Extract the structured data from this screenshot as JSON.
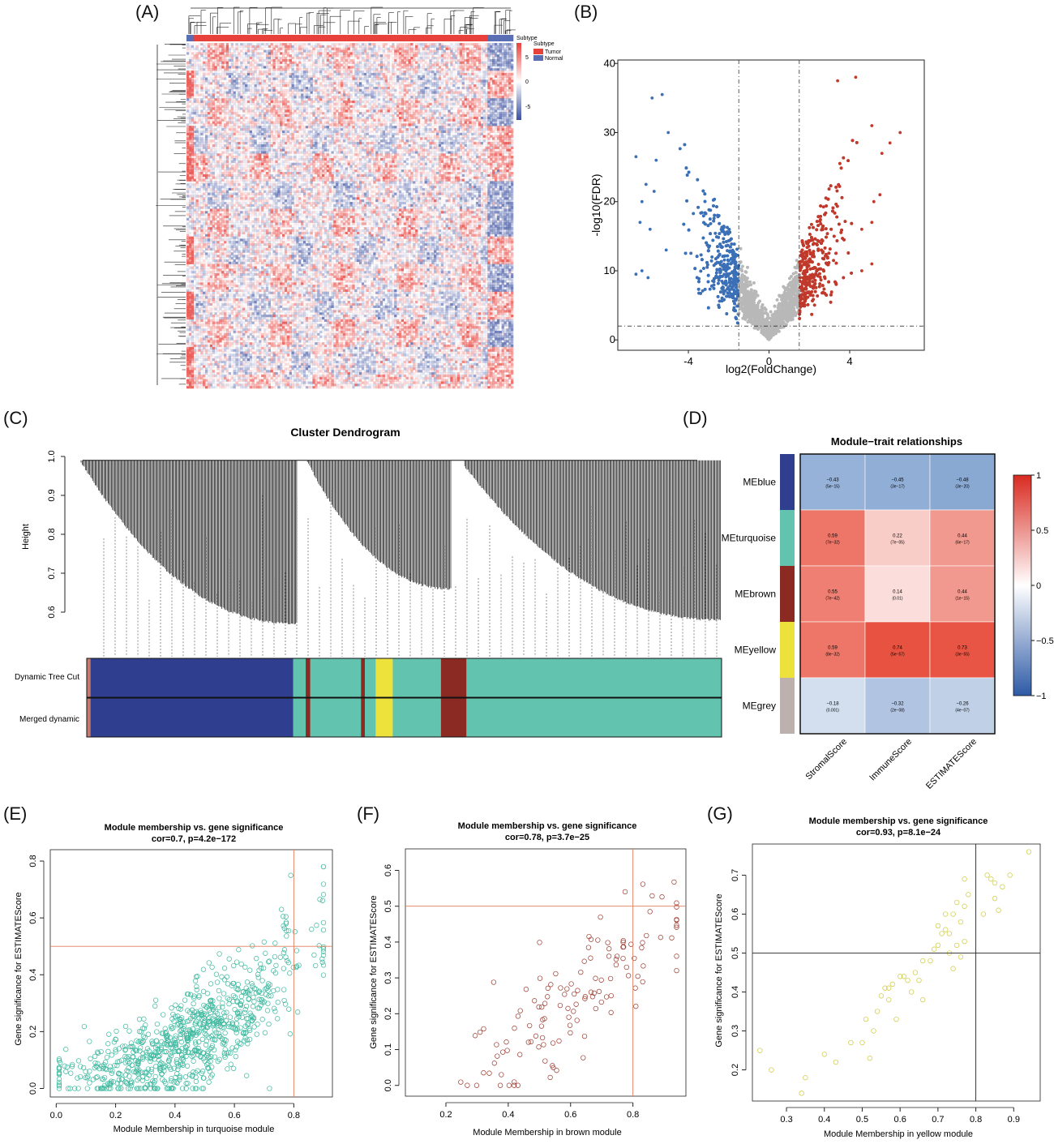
{
  "panels": {
    "A": "(A)",
    "B": "(B)",
    "C": "(C)",
    "D": "(D)",
    "E": "(E)",
    "F": "(F)",
    "G": "(G)"
  },
  "heatmap": {
    "legend_title": "Subtype",
    "legend_sub": "Subtype",
    "legend_items": [
      {
        "label": "Tumor",
        "color": "#e8403a"
      },
      {
        "label": "Normal",
        "color": "#5a6fb3"
      }
    ],
    "scale_ticks": [
      "5",
      "0",
      "-5"
    ]
  },
  "chart_data": [
    {
      "id": "volcano",
      "type": "scatter",
      "title": "",
      "xlabel": "log2(FoldChange)",
      "ylabel": "-log10(FDR)",
      "xlim": [
        -7.5,
        7.7
      ],
      "ylim": [
        -1.5,
        40.5
      ],
      "xticks": [
        -4,
        0,
        4
      ],
      "yticks": [
        0,
        10,
        20,
        30,
        40
      ],
      "thresholds": {
        "x": [
          -1.5,
          1.5
        ],
        "y": 2
      },
      "colors": {
        "down": "#3b6fb6",
        "ns": "#b8b8b8",
        "up": "#c0392b"
      },
      "outliers_down": [
        [
          -5.3,
          35.5
        ],
        [
          -5.8,
          35
        ],
        [
          -5.0,
          30
        ],
        [
          -6.6,
          26.5
        ],
        [
          -5.6,
          26
        ],
        [
          -6.1,
          22.5
        ],
        [
          -5.7,
          21.5
        ],
        [
          -6.3,
          20
        ],
        [
          -6.4,
          17
        ],
        [
          -5.9,
          16
        ],
        [
          -6.3,
          10
        ],
        [
          -6.6,
          9.5
        ],
        [
          -6.0,
          9
        ],
        [
          -5.1,
          13
        ]
      ],
      "outliers_up": [
        [
          4.3,
          38
        ],
        [
          6.5,
          30
        ],
        [
          6.0,
          28.5
        ],
        [
          5.1,
          31
        ],
        [
          5.6,
          27
        ],
        [
          3.4,
          37.5
        ],
        [
          5.5,
          21
        ],
        [
          5.2,
          20
        ],
        [
          5.1,
          17
        ],
        [
          4.6,
          16
        ],
        [
          5.1,
          11
        ],
        [
          4.6,
          10
        ]
      ]
    },
    {
      "id": "dendrogram",
      "type": "dendrogram",
      "title": "Cluster Dendrogram",
      "ylabel": "Height",
      "ylim": [
        0.5,
        1.0
      ],
      "yticks": [
        0.6,
        0.7,
        0.8,
        0.9,
        1.0
      ],
      "track_labels": [
        "Dynamic Tree Cut",
        "Merged dynamic"
      ],
      "module_segments": [
        {
          "color": "#c47a6f",
          "start": 0.0,
          "end": 0.006
        },
        {
          "color": "#2f3e8e",
          "start": 0.006,
          "end": 0.325
        },
        {
          "color": "#62c4ae",
          "start": 0.325,
          "end": 0.345
        },
        {
          "color": "#8b2a22",
          "start": 0.345,
          "end": 0.352
        },
        {
          "color": "#62c4ae",
          "start": 0.352,
          "end": 0.432
        },
        {
          "color": "#8b2a22",
          "start": 0.432,
          "end": 0.438
        },
        {
          "color": "#62c4ae",
          "start": 0.438,
          "end": 0.455
        },
        {
          "color": "#ede23b",
          "start": 0.455,
          "end": 0.482
        },
        {
          "color": "#62c4ae",
          "start": 0.482,
          "end": 0.558
        },
        {
          "color": "#8b2a22",
          "start": 0.558,
          "end": 0.598
        },
        {
          "color": "#62c4ae",
          "start": 0.598,
          "end": 1.0
        }
      ]
    },
    {
      "id": "module-trait",
      "type": "heatmap",
      "title": "Module−trait relationships",
      "rows": [
        "MEblue",
        "MEturquoise",
        "MEbrown",
        "MEyellow",
        "MEgrey"
      ],
      "row_colors": [
        "#2f3e8e",
        "#62c4ae",
        "#8b2a22",
        "#ede23b",
        "#bdb1af"
      ],
      "columns": [
        "StromalScore",
        "ImmuneScore",
        "ESTIMATEScore"
      ],
      "values": [
        [
          -0.43,
          -0.45,
          -0.48
        ],
        [
          0.59,
          0.22,
          0.44
        ],
        [
          0.55,
          0.14,
          0.44
        ],
        [
          0.59,
          0.74,
          0.73
        ],
        [
          -0.18,
          -0.32,
          -0.26
        ]
      ],
      "pvalues": [
        [
          "(5e−15)",
          "(3e−17)",
          "(3e−20)"
        ],
        [
          "(7e−32)",
          "(7e−05)",
          "(6e−17)"
        ],
        [
          "(7e−42)",
          "(0.01)",
          "(1e−15)"
        ],
        [
          "(8e−32)",
          "(5e−57)",
          "(3e−55)"
        ],
        [
          "(0.001)",
          "(2e−08)",
          "(4e−07)"
        ]
      ],
      "labels": [
        "−0.43",
        "−0.45",
        "−0.48",
        "0.59",
        "0.22",
        "0.44",
        "0.55",
        "0.14",
        "0.44",
        "0.59",
        "0.74",
        "0.73",
        "−0.18",
        "−0.32",
        "−0.26"
      ],
      "scale_ticks": [
        "1",
        "0.5",
        "0",
        "−0.5",
        "−1"
      ]
    },
    {
      "id": "mm-turquoise",
      "type": "scatter",
      "title": "Module membership vs. gene significance",
      "subtitle": "cor=0.7, p=4.2e−172",
      "xlabel": "Module Membership in turquoise module",
      "ylabel": "Gene significance for  ESTIMATEScore",
      "xlim": [
        -0.02,
        0.93
      ],
      "ylim": [
        -0.03,
        0.84
      ],
      "xticks": [
        0.0,
        0.2,
        0.4,
        0.6,
        0.8
      ],
      "yticks": [
        0.0,
        0.2,
        0.4,
        0.6,
        0.8
      ],
      "cutoff": {
        "x": 0.8,
        "y": 0.5
      },
      "color": "#3cb89e",
      "n_points": 850,
      "cor": 0.7
    },
    {
      "id": "mm-brown",
      "type": "scatter",
      "title": "Module membership vs. gene significance",
      "subtitle": "cor=0.78, p=3.7e−25",
      "xlabel": "Module Membership in brown module",
      "ylabel": "Gene significance for  ESTIMATEScore",
      "xlim": [
        0.07,
        0.97
      ],
      "ylim": [
        -0.03,
        0.66
      ],
      "xticks": [
        0.2,
        0.4,
        0.6,
        0.8
      ],
      "yticks": [
        0.0,
        0.1,
        0.2,
        0.3,
        0.4,
        0.5,
        0.6
      ],
      "cutoff": {
        "x": 0.8,
        "y": 0.5
      },
      "color": "#9c3a2e",
      "n_points": 130,
      "cor": 0.78
    },
    {
      "id": "mm-yellow",
      "type": "scatter",
      "title": "Module membership vs. gene significance",
      "subtitle": "cor=0.93, p=8.1e−24",
      "xlabel": "Module Membership in yellow module",
      "ylabel": "Gene significance for  ESTIMATEScore",
      "xlim": [
        0.21,
        0.97
      ],
      "ylim": [
        0.12,
        0.78
      ],
      "xticks": [
        0.3,
        0.4,
        0.5,
        0.6,
        0.7,
        0.8,
        0.9
      ],
      "yticks": [
        0.2,
        0.3,
        0.4,
        0.5,
        0.6,
        0.7
      ],
      "cutoff": {
        "x": 0.8,
        "y": 0.5
      },
      "color": "#cdca3a",
      "points": [
        [
          0.23,
          0.25
        ],
        [
          0.26,
          0.2
        ],
        [
          0.34,
          0.14
        ],
        [
          0.35,
          0.18
        ],
        [
          0.4,
          0.24
        ],
        [
          0.43,
          0.22
        ],
        [
          0.47,
          0.27
        ],
        [
          0.5,
          0.27
        ],
        [
          0.51,
          0.33
        ],
        [
          0.52,
          0.23
        ],
        [
          0.53,
          0.3
        ],
        [
          0.54,
          0.35
        ],
        [
          0.55,
          0.39
        ],
        [
          0.56,
          0.41
        ],
        [
          0.57,
          0.38
        ],
        [
          0.58,
          0.42
        ],
        [
          0.59,
          0.33
        ],
        [
          0.6,
          0.44
        ],
        [
          0.61,
          0.44
        ],
        [
          0.62,
          0.43
        ],
        [
          0.63,
          0.4
        ],
        [
          0.64,
          0.45
        ],
        [
          0.65,
          0.43
        ],
        [
          0.66,
          0.38
        ],
        [
          0.68,
          0.48
        ],
        [
          0.69,
          0.51
        ],
        [
          0.7,
          0.52
        ],
        [
          0.71,
          0.55
        ],
        [
          0.72,
          0.56
        ],
        [
          0.73,
          0.55
        ],
        [
          0.74,
          0.46
        ],
        [
          0.75,
          0.52
        ],
        [
          0.76,
          0.49
        ],
        [
          0.74,
          0.6
        ],
        [
          0.72,
          0.6
        ],
        [
          0.76,
          0.58
        ],
        [
          0.77,
          0.62
        ],
        [
          0.75,
          0.63
        ],
        [
          0.78,
          0.65
        ],
        [
          0.7,
          0.57
        ],
        [
          0.77,
          0.69
        ],
        [
          0.77,
          0.53
        ],
        [
          0.82,
          0.6
        ],
        [
          0.83,
          0.7
        ],
        [
          0.84,
          0.69
        ],
        [
          0.85,
          0.68
        ],
        [
          0.86,
          0.61
        ],
        [
          0.87,
          0.67
        ],
        [
          0.85,
          0.64
        ],
        [
          0.89,
          0.7
        ],
        [
          0.94,
          0.76
        ],
        [
          0.73,
          0.5
        ],
        [
          0.66,
          0.48
        ],
        [
          0.57,
          0.41
        ]
      ]
    }
  ]
}
